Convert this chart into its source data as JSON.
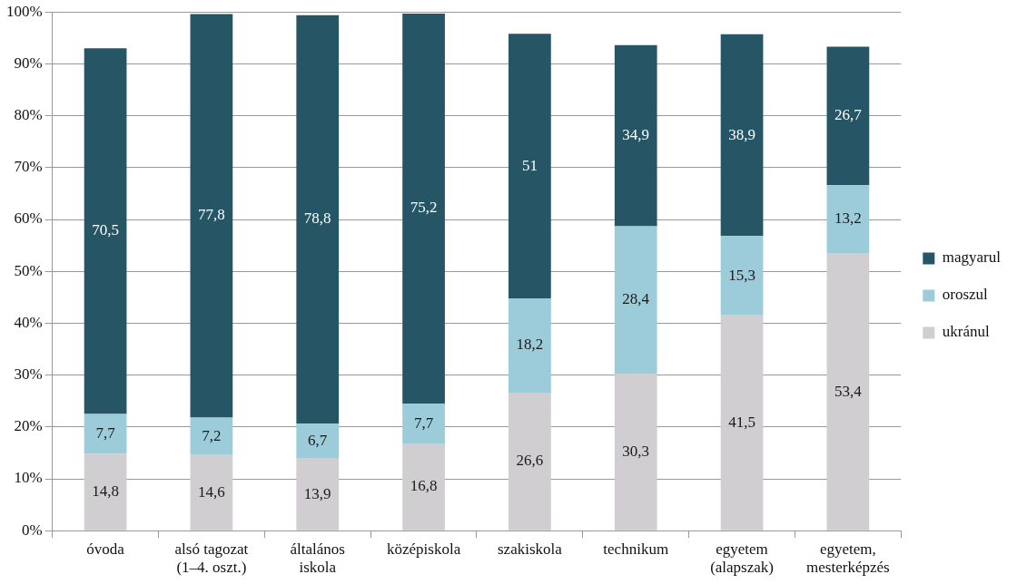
{
  "chart_data": {
    "type": "bar",
    "stacked": true,
    "categories": [
      "óvoda",
      "alsó tagozat (1–4. oszt.)",
      "általános iskola",
      "középiskola",
      "szakiskola",
      "technikum",
      "egyetem (alapszak)",
      "egyetem, mesterképzés"
    ],
    "series": [
      {
        "name": "ukránul",
        "color": "#d0ced0",
        "values": [
          14.8,
          14.6,
          13.9,
          16.8,
          26.6,
          30.3,
          41.5,
          53.4
        ],
        "value_labels": [
          "14,8",
          "14,6",
          "13,9",
          "16,8",
          "26,6",
          "30,3",
          "41,5",
          "53,4"
        ]
      },
      {
        "name": "oroszul",
        "color": "#9ccbd9",
        "values": [
          7.7,
          7.2,
          6.7,
          7.7,
          18.2,
          28.4,
          15.3,
          13.2
        ],
        "value_labels": [
          "7,7",
          "7,2",
          "6,7",
          "7,7",
          "18,2",
          "28,4",
          "15,3",
          "13,2"
        ]
      },
      {
        "name": "magyarul",
        "color": "#265566",
        "values": [
          70.5,
          77.8,
          78.8,
          75.2,
          51,
          34.9,
          38.9,
          26.7
        ],
        "value_labels": [
          "70,5",
          "77,8",
          "78,8",
          "75,2",
          "51",
          "34,9",
          "38,9",
          "26,7"
        ]
      }
    ],
    "ylim": [
      0,
      100
    ],
    "yticks": [
      {
        "value": 0,
        "label": "0%"
      },
      {
        "value": 10,
        "label": "10%"
      },
      {
        "value": 20,
        "label": "20%"
      },
      {
        "value": 30,
        "label": "30%"
      },
      {
        "value": 40,
        "label": "40%"
      },
      {
        "value": 50,
        "label": "50%"
      },
      {
        "value": 60,
        "label": "60%"
      },
      {
        "value": 70,
        "label": "70%"
      },
      {
        "value": 80,
        "label": "80%"
      },
      {
        "value": 90,
        "label": "90%"
      },
      {
        "value": 100,
        "label": "100%"
      }
    ],
    "grid": "y",
    "legend": "right"
  }
}
